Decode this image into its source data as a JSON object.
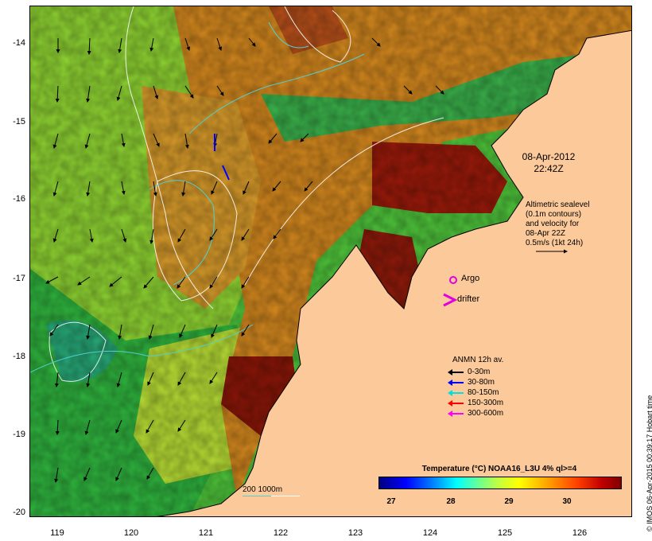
{
  "map": {
    "date_line1": "08-Apr-2012",
    "date_line2": "22:42Z",
    "altimetry_lines": [
      "Altimetric sealevel",
      "(0.1m contours)",
      "and velocity for",
      "08-Apr 22Z",
      "0.5m/s (1kt 24h)"
    ],
    "argo_label": "Argo",
    "drifter_label": "drifter",
    "depth_legend": "200  1000m",
    "credit": "© IMOS 06-Apr-2015 00:39:17 Hobart time",
    "lat_ticks": [
      "-14",
      "-15",
      "-16",
      "-17",
      "-18",
      "-19",
      "-20"
    ],
    "lon_ticks": [
      "119",
      "120",
      "121",
      "122",
      "123",
      "124",
      "125",
      "126"
    ]
  },
  "anmn_legend": {
    "title": "ANMN 12h av.",
    "entries": [
      {
        "label": "0-30m",
        "color": "#000000"
      },
      {
        "label": "30-80m",
        "color": "#0000ff"
      },
      {
        "label": "80-150m",
        "color": "#00e0e0"
      },
      {
        "label": "150-300m",
        "color": "#ff0000"
      },
      {
        "label": "300-600m",
        "color": "#ff00ff"
      }
    ]
  },
  "colorbar": {
    "title": "Temperature (°C) NOAA16_L3U 4% ql>=4",
    "ticks": [
      "27",
      "28",
      "29",
      "30"
    ]
  },
  "colors": {
    "land": "#fcc99a",
    "sea_warm": "#d27a1c",
    "sea_hot": "#8a1208",
    "sea_mid": "#58b832",
    "sea_cool": "#1aa854",
    "argo": "#e000e0",
    "drifter": "#e000e0"
  }
}
